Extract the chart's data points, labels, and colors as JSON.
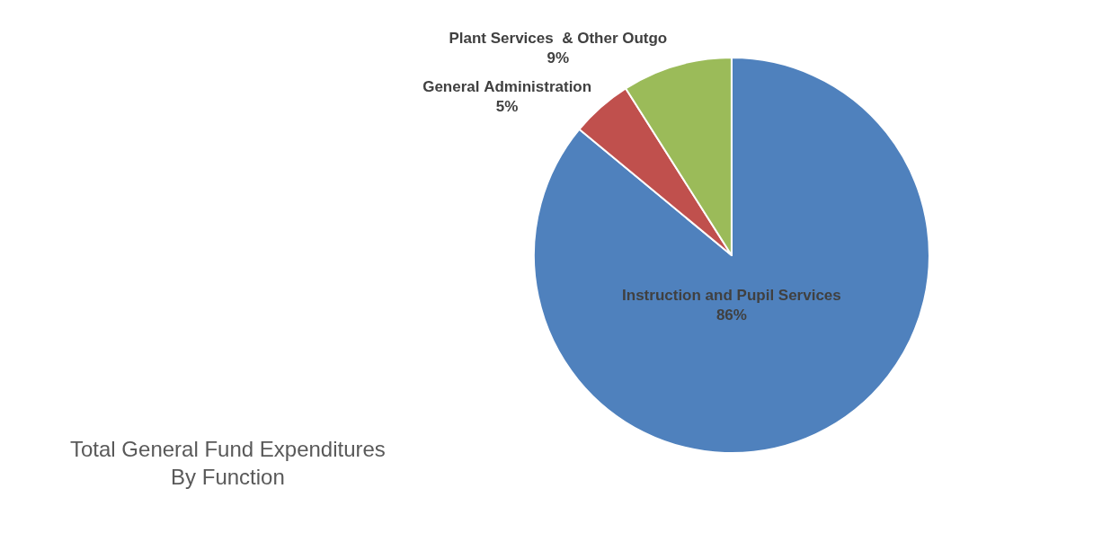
{
  "chart_data": {
    "type": "pie",
    "title": "Total General Fund Expenditures\nBy Function",
    "categories": [
      "Instruction and Pupil Services",
      "General Administration",
      "Plant Services  & Other Outgo"
    ],
    "values": [
      86,
      5,
      9
    ],
    "colors": [
      "#4f81bd",
      "#c0504d",
      "#9bbb59"
    ],
    "value_labels": [
      "86%",
      "5%",
      "9%"
    ],
    "legend": false
  }
}
